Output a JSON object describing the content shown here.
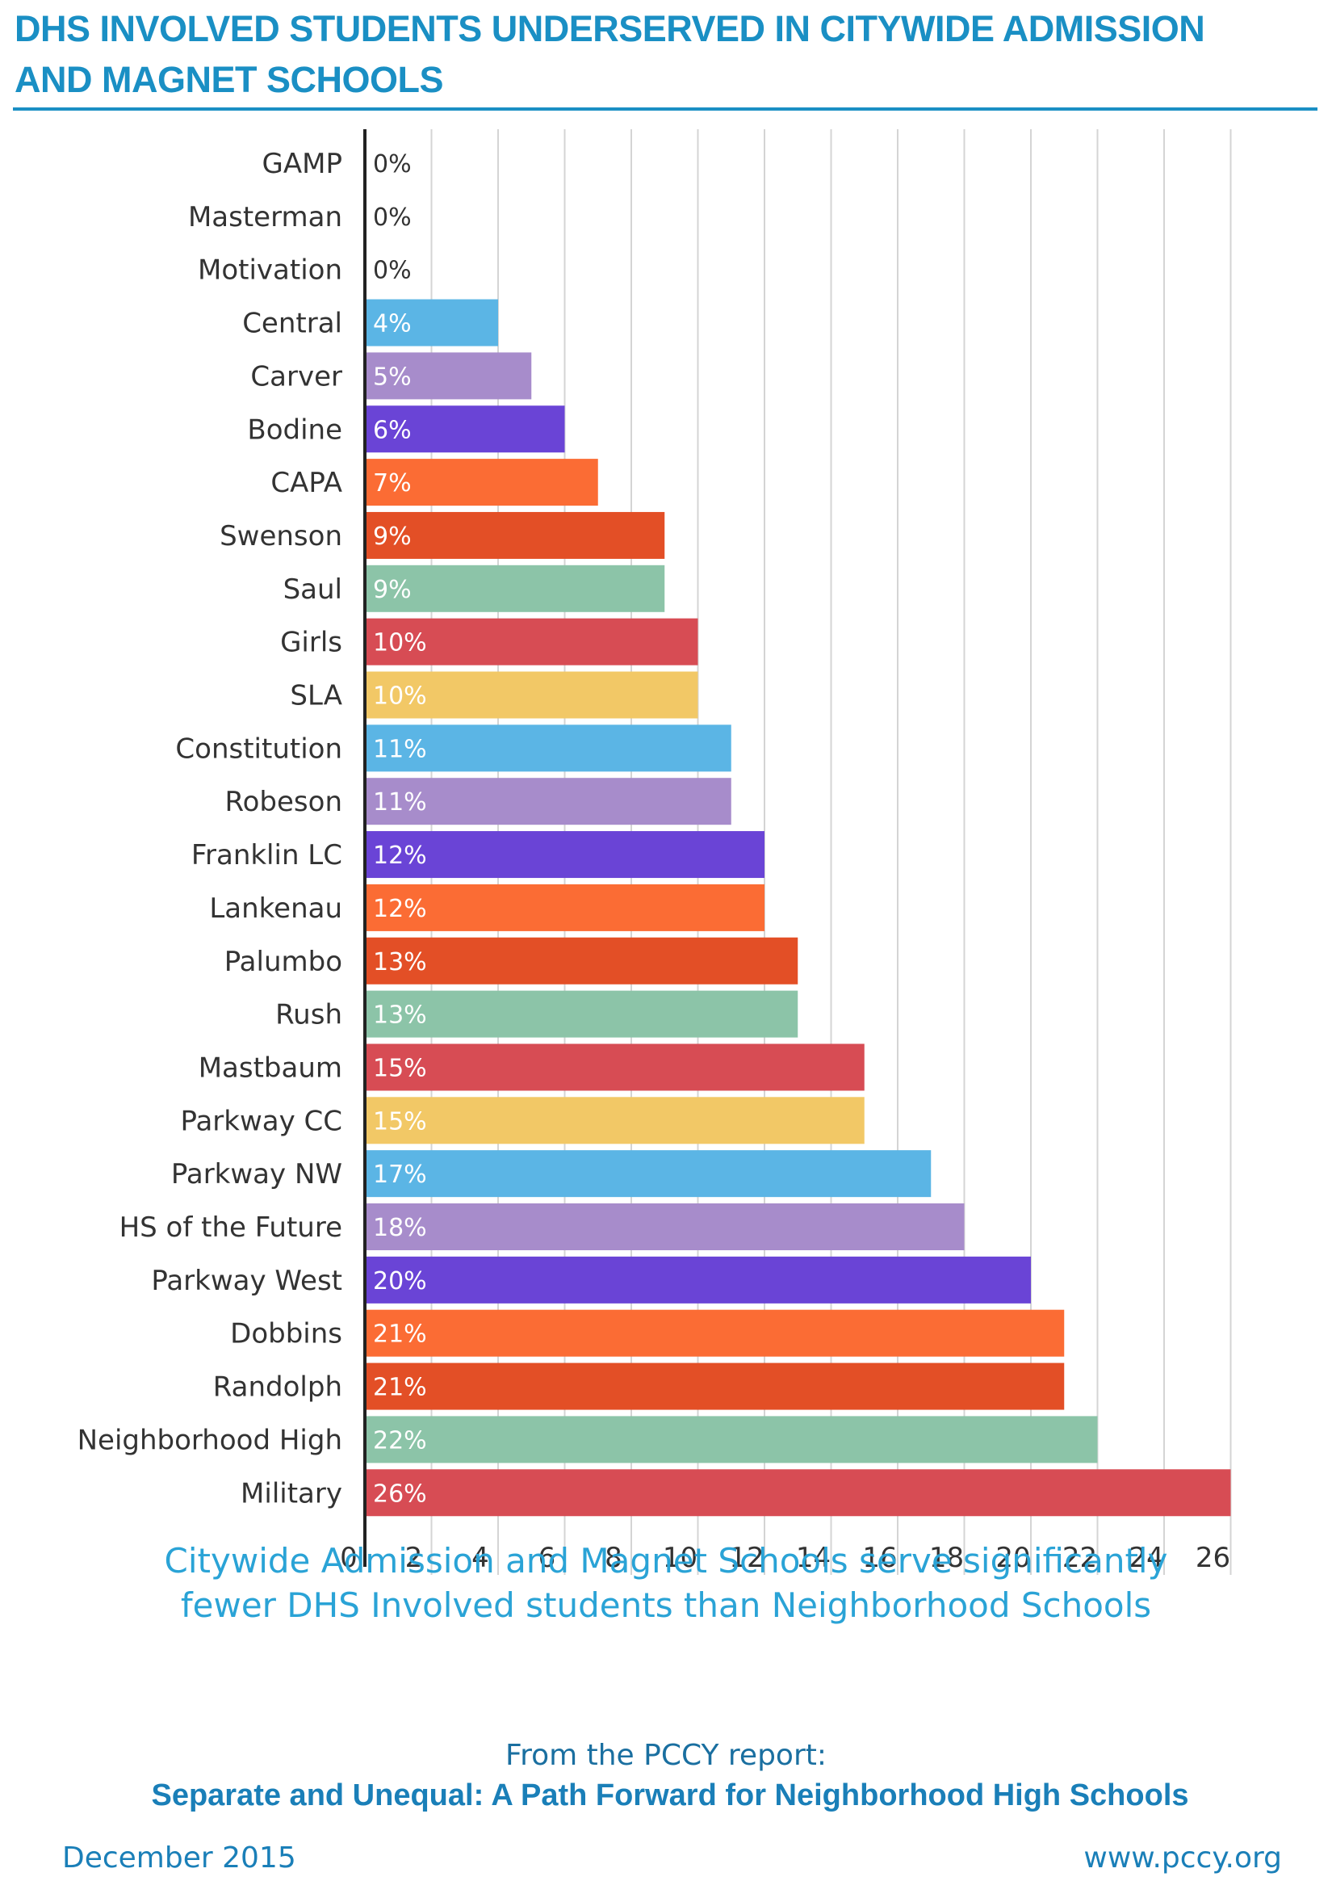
{
  "title_line1": "DHS INVOLVED STUDENTS UNDERSERVED IN CITYWIDE ADMISSION",
  "title_line2": "AND MAGNET SCHOOLS",
  "caption_line1": "Citywide Admission and Magnet Schools serve significantly",
  "caption_line2": "fewer DHS Involved students than Neighborhood Schools",
  "source_intro": "From the PCCY report:",
  "source_title": "Separate and Unequal: A Path Forward for Neighborhood High Schools",
  "footer_date": "December 2015",
  "footer_url": "www.pccy.org",
  "chart_data": {
    "type": "bar",
    "orientation": "horizontal",
    "title": "",
    "xlabel": "",
    "ylabel": "",
    "xlim": [
      0,
      26
    ],
    "x_ticks": [
      0,
      2,
      4,
      6,
      8,
      10,
      12,
      14,
      16,
      18,
      20,
      22,
      24,
      26
    ],
    "grid": "vertical",
    "legend": "none",
    "categories": [
      "GAMP",
      "Masterman",
      "Motivation",
      "Central",
      "Carver",
      "Bodine",
      "CAPA",
      "Swenson",
      "Saul",
      "Girls",
      "SLA",
      "Constitution",
      "Robeson",
      "Franklin LC",
      "Lankenau",
      "Palumbo",
      "Rush",
      "Mastbaum",
      "Parkway CC",
      "Parkway NW",
      "HS of the Future",
      "Parkway West",
      "Dobbins",
      "Randolph",
      "Neighborhood High",
      "Military"
    ],
    "values": [
      0,
      0,
      0,
      4,
      5,
      6,
      7,
      9,
      9,
      10,
      10,
      11,
      11,
      12,
      12,
      13,
      13,
      15,
      15,
      17,
      18,
      20,
      21,
      21,
      22,
      26
    ],
    "value_labels": [
      "0%",
      "0%",
      "0%",
      "4%",
      "5%",
      "6%",
      "7%",
      "9%",
      "9%",
      "10%",
      "10%",
      "11%",
      "11%",
      "12%",
      "12%",
      "13%",
      "13%",
      "15%",
      "15%",
      "17%",
      "18%",
      "20%",
      "21%",
      "21%",
      "22%",
      "26%"
    ],
    "color_cycle": [
      "#5bb5e5",
      "#a78ccb",
      "#6a44d6",
      "#fb6c34",
      "#e34f26",
      "#8cc4a8",
      "#d74c54",
      "#f2c866"
    ],
    "first_colored_index": 3
  }
}
